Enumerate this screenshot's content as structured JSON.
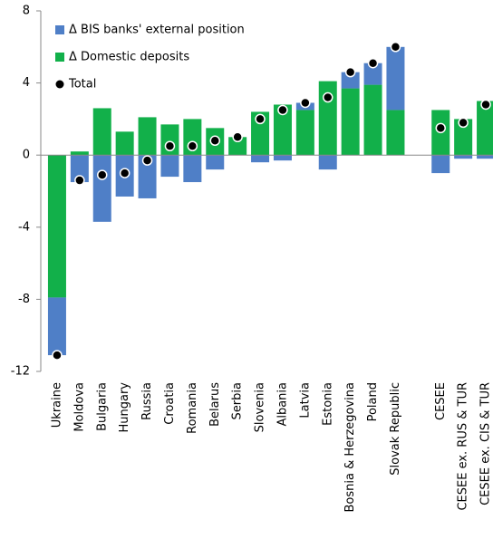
{
  "chart_data": {
    "type": "bar",
    "stacked": true,
    "categories": [
      "Ukraine",
      "Moldova",
      "Bulgaria",
      "Hungary",
      "Russia",
      "Croatia",
      "Romania",
      "Belarus",
      "Serbia",
      "Slovenia",
      "Albania",
      "Latvia",
      "Estonia",
      "Bosnia & Herzegovina",
      "Poland",
      "Slovak Republic",
      null,
      "CESEE",
      "CESEE ex. RUS & TUR",
      "CESEE ex. CIS & TUR"
    ],
    "series": [
      {
        "name": "Δ BIS banks' external position",
        "color": "#4f7fc7",
        "mark": "bar",
        "values": [
          -3.2,
          -1.5,
          -3.7,
          -2.3,
          -2.4,
          -1.2,
          -1.5,
          -0.8,
          0,
          -0.4,
          -0.3,
          0.4,
          -0.8,
          0.9,
          1.2,
          3.5,
          null,
          -1.0,
          -0.2,
          -0.2
        ]
      },
      {
        "name": "Δ Domestic deposits",
        "color": "#12b04a",
        "mark": "bar",
        "values": [
          -7.9,
          0.2,
          2.6,
          1.3,
          2.1,
          1.7,
          2.0,
          1.5,
          1.0,
          2.4,
          2.8,
          2.5,
          4.1,
          3.7,
          3.9,
          2.5,
          null,
          2.5,
          2.0,
          3.0
        ]
      },
      {
        "name": "Total",
        "color": "#000000",
        "mark": "dot",
        "values": [
          -11.1,
          -1.4,
          -1.1,
          -1.0,
          -0.3,
          0.5,
          0.5,
          0.8,
          1.0,
          2.0,
          2.5,
          2.9,
          3.2,
          4.6,
          5.1,
          6.0,
          null,
          1.5,
          1.8,
          2.8
        ]
      }
    ],
    "ylim": [
      -12,
      8
    ],
    "yticks": [
      -12,
      -8,
      -4,
      0,
      4,
      8
    ],
    "legend": "top-left"
  }
}
